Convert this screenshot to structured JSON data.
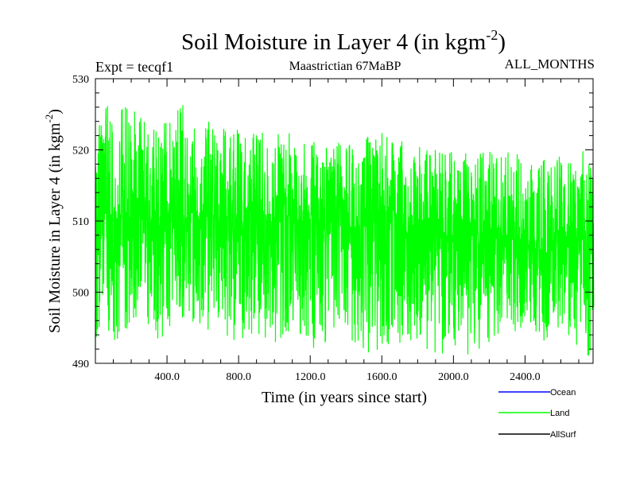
{
  "title_main": "Soil Moisture in Layer 4 (in kgm",
  "title_sup": "-2",
  "title_close": ")",
  "expt_label": "Expt = tecqf1",
  "subtitle": "Maastrictian 67MaBP",
  "months_label": "ALL_MONTHS",
  "chart_data": {
    "type": "line",
    "xlabel": "Time (in years since start)",
    "ylabel_main": "Soil Moisture in Layer 4 (in kgm",
    "ylabel_sup": "-2",
    "ylabel_close": ")",
    "xlim": [
      0,
      2780
    ],
    "ylim": [
      490,
      530
    ],
    "x_ticks": [
      400,
      800,
      1200,
      1600,
      2000,
      2400
    ],
    "x_tick_labels": [
      "400.0",
      "800.0",
      "1200.0",
      "1600.0",
      "2000.0",
      "2400.0"
    ],
    "y_ticks": [
      490,
      500,
      510,
      520,
      530
    ],
    "y_tick_labels": [
      "490",
      "500",
      "510",
      "520",
      "530"
    ],
    "legend_position": "bottom-right, outside plot",
    "series": [
      {
        "name": "Ocean",
        "color": "#0000ff",
        "x": [],
        "values": []
      },
      {
        "name": "Land",
        "color": "#00ff00",
        "x": [
          0,
          100,
          200,
          300,
          400,
          500,
          600,
          700,
          800,
          900,
          1000,
          1100,
          1200,
          1300,
          1400,
          1500,
          1600,
          1700,
          1800,
          1900,
          2000,
          2100,
          2200,
          2300,
          2400,
          2500,
          2600,
          2700,
          2780
        ],
        "values": [
          510.5,
          511,
          510.5,
          510,
          509.5,
          510.5,
          511,
          510,
          510,
          509.5,
          510,
          510.5,
          509.5,
          510,
          509,
          509.5,
          510,
          509,
          508.5,
          508.5,
          508,
          508,
          507.5,
          507.5,
          507.5,
          507,
          507,
          507.5,
          507
        ],
        "range_max": [
          526.5,
          526,
          526,
          524,
          524,
          527,
          525,
          523.5,
          523,
          523,
          522,
          523,
          522,
          521.5,
          521,
          522,
          522.5,
          521.5,
          520.5,
          520,
          520,
          519.5,
          520,
          520,
          520,
          519.5,
          519,
          521,
          517
        ],
        "range_min": [
          492,
          493,
          495,
          494,
          491.5,
          495,
          494,
          493.5,
          493,
          494,
          492.5,
          495,
          492,
          493,
          494,
          491,
          492,
          492.5,
          493,
          490.5,
          492,
          491,
          493,
          494,
          495,
          493,
          494,
          492,
          490.5
        ]
      },
      {
        "name": "AllSurf",
        "color": "#000000",
        "x": [],
        "values": []
      }
    ]
  }
}
